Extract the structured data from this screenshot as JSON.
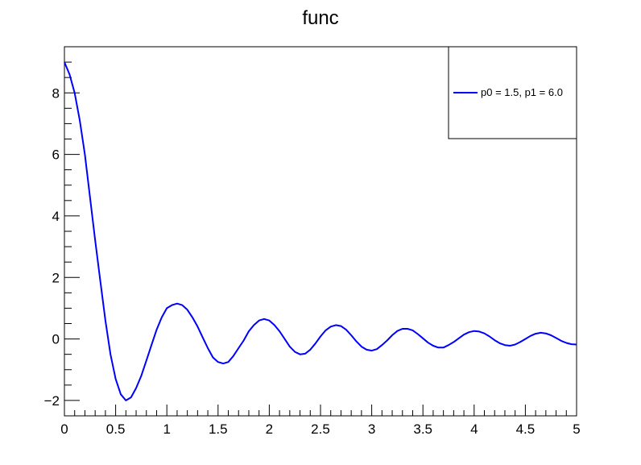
{
  "chart_data": {
    "type": "line",
    "title": "func",
    "xlabel": "",
    "ylabel": "",
    "xlim": [
      0,
      5
    ],
    "ylim": [
      -2.5,
      9.5
    ],
    "x_ticks": [
      {
        "value": 0,
        "label": "0"
      },
      {
        "value": 0.5,
        "label": "0.5"
      },
      {
        "value": 1,
        "label": "1"
      },
      {
        "value": 1.5,
        "label": "1.5"
      },
      {
        "value": 2,
        "label": "2"
      },
      {
        "value": 2.5,
        "label": "2.5"
      },
      {
        "value": 3,
        "label": "3"
      },
      {
        "value": 3.5,
        "label": "3.5"
      },
      {
        "value": 4,
        "label": "4"
      },
      {
        "value": 4.5,
        "label": "4.5"
      },
      {
        "value": 5,
        "label": "5"
      }
    ],
    "y_ticks": [
      {
        "value": -2,
        "label": "−2"
      },
      {
        "value": 0,
        "label": "0"
      },
      {
        "value": 2,
        "label": "2"
      },
      {
        "value": 4,
        "label": "4"
      },
      {
        "value": 6,
        "label": "6"
      },
      {
        "value": 8,
        "label": "8"
      }
    ],
    "grid": false,
    "legend_position": "top-right",
    "series": [
      {
        "name": "p0 = 1.5, p1 = 6.0",
        "color": "#0000ff",
        "x": [
          0,
          0.05,
          0.1,
          0.15,
          0.2,
          0.25,
          0.3,
          0.35,
          0.4,
          0.45,
          0.5,
          0.55,
          0.6,
          0.65,
          0.7,
          0.75,
          0.8,
          0.85,
          0.9,
          0.95,
          1.0,
          1.05,
          1.1,
          1.15,
          1.2,
          1.25,
          1.3,
          1.35,
          1.4,
          1.45,
          1.5,
          1.55,
          1.6,
          1.65,
          1.7,
          1.75,
          1.8,
          1.85,
          1.9,
          1.95,
          2.0,
          2.05,
          2.1,
          2.15,
          2.2,
          2.25,
          2.3,
          2.35,
          2.4,
          2.45,
          2.5,
          2.55,
          2.6,
          2.65,
          2.7,
          2.75,
          2.8,
          2.85,
          2.9,
          2.95,
          3.0,
          3.05,
          3.1,
          3.15,
          3.2,
          3.25,
          3.3,
          3.35,
          3.4,
          3.45,
          3.5,
          3.55,
          3.6,
          3.65,
          3.7,
          3.75,
          3.8,
          3.85,
          3.9,
          3.95,
          4.0,
          4.05,
          4.1,
          4.15,
          4.2,
          4.25,
          4.3,
          4.35,
          4.4,
          4.45,
          4.5,
          4.55,
          4.6,
          4.65,
          4.7,
          4.75,
          4.8,
          4.85,
          4.9,
          4.95,
          5.0
        ],
        "y": [
          9.0,
          8.6,
          8.0,
          7.1,
          6.0,
          4.6,
          3.2,
          1.9,
          0.6,
          -0.5,
          -1.3,
          -1.8,
          -2.0,
          -1.9,
          -1.6,
          -1.2,
          -0.7,
          -0.2,
          0.3,
          0.7,
          1.0,
          1.1,
          1.15,
          1.1,
          0.95,
          0.7,
          0.4,
          0.05,
          -0.3,
          -0.6,
          -0.75,
          -0.8,
          -0.75,
          -0.55,
          -0.3,
          -0.05,
          0.25,
          0.45,
          0.6,
          0.65,
          0.6,
          0.45,
          0.25,
          0.0,
          -0.25,
          -0.42,
          -0.5,
          -0.48,
          -0.35,
          -0.15,
          0.08,
          0.28,
          0.4,
          0.45,
          0.42,
          0.3,
          0.12,
          -0.08,
          -0.25,
          -0.35,
          -0.38,
          -0.33,
          -0.2,
          -0.05,
          0.12,
          0.26,
          0.33,
          0.33,
          0.28,
          0.16,
          0.02,
          -0.12,
          -0.22,
          -0.28,
          -0.28,
          -0.2,
          -0.1,
          0.02,
          0.14,
          0.22,
          0.26,
          0.24,
          0.18,
          0.08,
          -0.04,
          -0.14,
          -0.2,
          -0.22,
          -0.18,
          -0.1,
          0.0,
          0.1,
          0.17,
          0.2,
          0.18,
          0.12,
          0.03,
          -0.06,
          -0.13,
          -0.17,
          -0.18
        ]
      }
    ]
  }
}
